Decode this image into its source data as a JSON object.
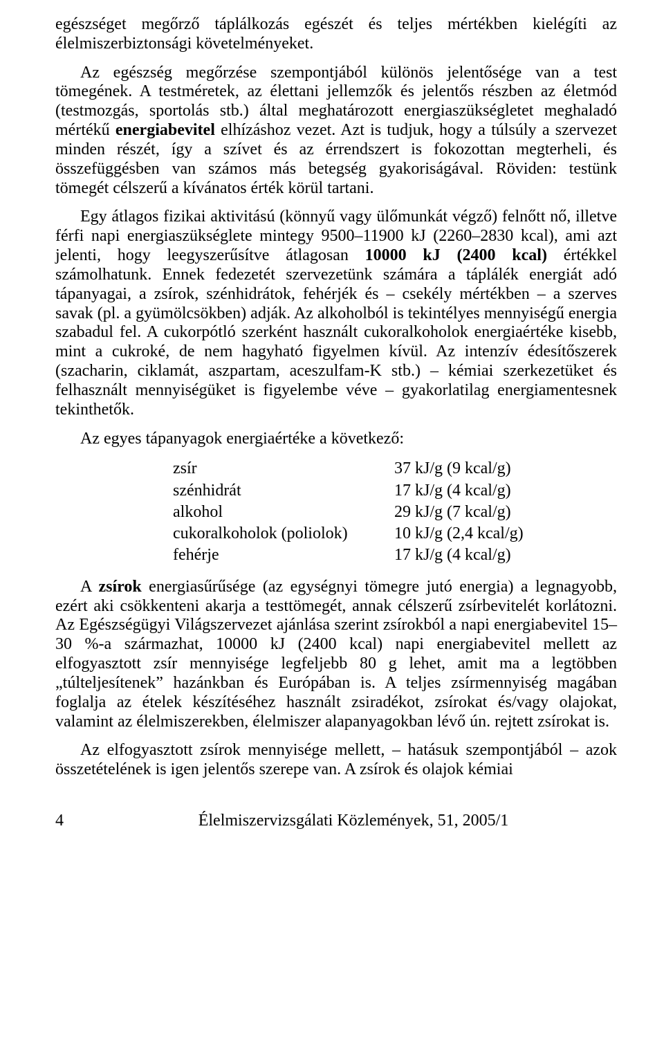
{
  "paragraphs": {
    "p1": "egészséget megőrző táplálkozás egészét és teljes mértékben kielégíti az élelmiszerbiztonsági követelményeket.",
    "p2_pre": "Az egészség megőrzése szempontjából különös jelentősége van a test tömegének. A testméretek, az élettani jellemzők és jelentős részben az életmód (testmozgás, sportolás stb.) által meghatározott energiaszükségletet meghaladó mértékű ",
    "p2_bold1": "energiabevitel",
    "p2_post": " elhízáshoz vezet. Azt is tudjuk, hogy a túlsúly a szervezet minden részét, így a szívet és az érrendszert is fokozottan megterheli, és összefüggésben van számos más betegség gyakoriságával. Röviden: testünk tömegét célszerű a kívánatos érték körül tartani.",
    "p3_pre": "Egy átlagos fizikai aktivitású (könnyű vagy ülőmunkát végző) felnőtt nő, illetve férfi napi energiaszükséglete mintegy 9500–11900 kJ (2260–2830 kcal), ami azt jelenti, hogy leegyszerűsítve átlagosan ",
    "p3_bold1": "10000 kJ (2400 kcal)",
    "p3_post": " értékkel számolhatunk. Ennek fedezetét szervezetünk számára a táplálék energiát adó tápanyagai, a zsírok, szénhidrátok, fehérjék és – csekély mértékben – a szerves savak (pl. a gyümölcsökben) adják. Az alkoholból is tekintélyes mennyiségű energia szabadul fel. A cukorpótló szerként használt cukoralkoholok energiaértéke kisebb, mint a cukroké, de nem hagyható figyelmen kívül. Az intenzív édesítőszerek (szacharin, ciklamát, aszpartam, aceszulfam-K stb.) – kémiai szerkezetüket és felhasznált mennyiségüket is figyelembe véve – gyakorlatilag energiamentesnek tekinthetők.",
    "p4": "Az egyes tápanyagok energiaértéke a következő:",
    "p5_pre": "A ",
    "p5_bold1": "zsírok",
    "p5_post": " energiasűrűsége (az egységnyi tömegre jutó energia) a legnagyobb, ezért aki csökkenteni akarja a testtömegét, annak célszerű zsírbevitelét korlátozni. Az Egészségügyi Világszervezet ajánlása szerint zsírokból a napi energiabevitel 15–30 %-a származhat, 10000 kJ (2400 kcal) napi energiabevitel mellett az elfogyasztott zsír mennyisége legfeljebb 80 g lehet, amit ma a legtöbben „túlteljesítenek” hazánkban és Európában is. A teljes zsírmennyiség magában foglalja az ételek készítéséhez használt zsiradékot, zsírokat és/vagy olajokat, valamint az élelmiszerekben, élelmiszer alapanyagokban lévő ún. rejtett zsírokat is.",
    "p6": "Az elfogyasztott zsírok mennyisége mellett, – hatásuk szempontjából – azok összetételének is igen jelentős szerepe van. A zsírok és olajok kémiai"
  },
  "energy_table": {
    "rows": [
      {
        "label": "zsír",
        "value": "37 kJ/g (9 kcal/g)"
      },
      {
        "label": "szénhidrát",
        "value": "17 kJ/g (4 kcal/g)"
      },
      {
        "label": "alkohol",
        "value": "29 kJ/g (7 kcal/g)"
      },
      {
        "label": "cukoralkoholok (poliolok)",
        "value": "10 kJ/g (2,4 kcal/g)"
      },
      {
        "label": "fehérje",
        "value": "17 kJ/g (4 kcal/g)"
      }
    ]
  },
  "footer": {
    "page": "4",
    "journal": "Élelmiszervizsgálati Közlemények, 51, 2005/1"
  }
}
